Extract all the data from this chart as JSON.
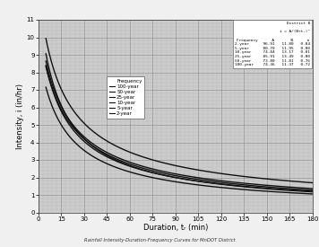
{
  "title": "Rainfall Intensity-Duration-Frequency Curves for MnDOT District",
  "xlabel": "Duration, tᵣ (min)",
  "ylabel": "Intensity, i (in/hr)",
  "xlim": [
    0,
    180
  ],
  "ylim": [
    0,
    11
  ],
  "xticks": [
    0,
    15,
    30,
    45,
    60,
    75,
    90,
    105,
    120,
    135,
    150,
    165,
    180
  ],
  "yticks": [
    0,
    1,
    2,
    3,
    4,
    5,
    6,
    7,
    8,
    9,
    10,
    11
  ],
  "formula": "i = A/(B+tᵣ)ⁿ",
  "table_title": "District 8",
  "frequencies": [
    "2-year",
    "5-year",
    "10-year",
    "25-year",
    "50-year",
    "100-year"
  ],
  "params": {
    "2-year": {
      "A": 96.91,
      "B": 11.8,
      "n": 0.84
    },
    "5-year": {
      "A": 80.7,
      "B": 11.95,
      "n": 0.8
    },
    "10-year": {
      "A": 74.84,
      "B": 13.17,
      "n": 0.81
    },
    "25-year": {
      "A": 85.91,
      "B": 13.49,
      "n": 0.8
    },
    "50-year": {
      "A": 73.8,
      "B": 11.81,
      "n": 0.76
    },
    "100-year": {
      "A": 74.36,
      "B": 11.37,
      "n": 0.72
    }
  },
  "plot_bg": "#cccccc",
  "fig_bg": "#f0f0f0",
  "minor_x_step": 3,
  "minor_y_step": 0.2,
  "major_x_step": 15,
  "major_y_step": 1
}
